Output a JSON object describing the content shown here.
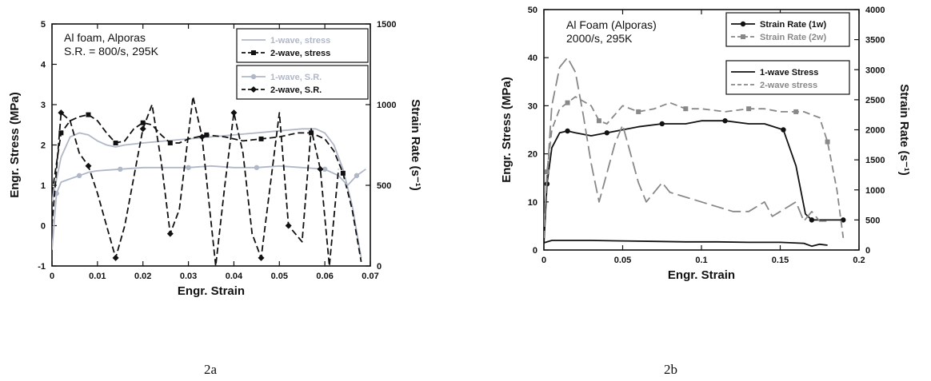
{
  "labels": {
    "left": "2a",
    "right": "2b"
  },
  "chart_data": [
    {
      "type": "line",
      "xlabel": "Engr. Strain",
      "ylabel": "Engr. Stress (MPa)",
      "y2label": "Strain Rate (s⁻¹)",
      "xlim": [
        0,
        0.07
      ],
      "ylim": [
        -1,
        5
      ],
      "y2lim": [
        0,
        1500
      ],
      "xticks": [
        "0",
        "0.01",
        "0.02",
        "0.03",
        "0.04",
        "0.05",
        "0.06",
        "0.07"
      ],
      "yticks": [
        "-1",
        "0",
        "1",
        "2",
        "3",
        "4",
        "5"
      ],
      "y2ticks": [
        "0",
        "500",
        "1000",
        "1500"
      ],
      "annotation": [
        "Al foam, Alporas",
        "S.R. = 800/s, 295K"
      ],
      "legend_position": "top-right",
      "grid": false,
      "series": [
        {
          "name": "1-wave, stress",
          "axis": "left",
          "color": "#b0b8c8",
          "dash": "solid",
          "marker": "none",
          "x": [
            0,
            0.002,
            0.004,
            0.006,
            0.008,
            0.01,
            0.012,
            0.014,
            0.016,
            0.02,
            0.025,
            0.03,
            0.035,
            0.04,
            0.045,
            0.05,
            0.055,
            0.058,
            0.06,
            0.062,
            0.064,
            0.066,
            0.068
          ],
          "y": [
            0.6,
            1.7,
            2.2,
            2.3,
            2.25,
            2.1,
            2.0,
            1.95,
            2.0,
            2.05,
            2.1,
            2.15,
            2.2,
            2.25,
            2.3,
            2.35,
            2.4,
            2.4,
            2.3,
            2.0,
            1.4,
            0.5,
            -0.8
          ]
        },
        {
          "name": "2-wave, stress",
          "axis": "left",
          "color": "#111111",
          "dash": "8,4",
          "marker": "square",
          "x": [
            0,
            0.002,
            0.004,
            0.006,
            0.008,
            0.01,
            0.012,
            0.014,
            0.016,
            0.018,
            0.02,
            0.022,
            0.024,
            0.026,
            0.028,
            0.03,
            0.034,
            0.038,
            0.042,
            0.046,
            0.05,
            0.054,
            0.057,
            0.06,
            0.062,
            0.064,
            0.066,
            0.068
          ],
          "y": [
            0.8,
            2.3,
            2.6,
            2.7,
            2.75,
            2.6,
            2.3,
            2.05,
            2.1,
            2.4,
            2.55,
            2.5,
            2.25,
            2.05,
            2.05,
            2.15,
            2.25,
            2.2,
            2.1,
            2.15,
            2.2,
            2.3,
            2.3,
            2.15,
            1.85,
            1.3,
            0.4,
            -0.9
          ]
        },
        {
          "name": "1-wave, S.R.",
          "axis": "right",
          "color": "#b0b8c8",
          "dash": "solid",
          "marker": "circle",
          "x": [
            0,
            0.001,
            0.002,
            0.004,
            0.006,
            0.008,
            0.01,
            0.015,
            0.02,
            0.025,
            0.03,
            0.035,
            0.04,
            0.045,
            0.05,
            0.055,
            0.06,
            0.063,
            0.065,
            0.067,
            0.069
          ],
          "y": [
            100,
            450,
            520,
            540,
            560,
            580,
            590,
            600,
            610,
            610,
            610,
            620,
            610,
            610,
            620,
            610,
            600,
            560,
            500,
            560,
            600
          ]
        },
        {
          "name": "2-wave, S.R.",
          "axis": "right",
          "color": "#111111",
          "dash": "8,4",
          "marker": "diamond",
          "x": [
            0,
            0.002,
            0.004,
            0.006,
            0.008,
            0.01,
            0.012,
            0.014,
            0.016,
            0.018,
            0.02,
            0.022,
            0.024,
            0.026,
            0.028,
            0.031,
            0.033,
            0.036,
            0.038,
            0.04,
            0.042,
            0.044,
            0.046,
            0.048,
            0.05,
            0.052,
            0.055,
            0.057,
            0.059,
            0.061,
            0.063
          ],
          "y": [
            250,
            950,
            900,
            700,
            620,
            450,
            250,
            50,
            250,
            550,
            850,
            1000,
            650,
            200,
            350,
            1050,
            800,
            0,
            500,
            950,
            700,
            200,
            50,
            500,
            950,
            250,
            150,
            850,
            600,
            0,
            600
          ]
        }
      ]
    },
    {
      "type": "line",
      "xlabel": "Engr. Strain",
      "ylabel": "Engr. Stress (MPa)",
      "y2label": "Strain Rate (s⁻¹)",
      "xlim": [
        0,
        0.2
      ],
      "ylim": [
        0,
        50
      ],
      "y2lim": [
        0,
        4000
      ],
      "xticks": [
        "0",
        "0.05",
        "0.1",
        "0.15",
        "0.2"
      ],
      "yticks": [
        "0",
        "10",
        "20",
        "30",
        "40",
        "50"
      ],
      "y2ticks": [
        "0",
        "500",
        "1000",
        "1500",
        "2000",
        "2500",
        "3000",
        "3500",
        "4000"
      ],
      "annotation": [
        "Al Foam (Alporas)",
        "2000/s, 295K"
      ],
      "legend_position": "top-right",
      "grid": false,
      "series": [
        {
          "name": "Strain Rate (1w)",
          "axis": "right",
          "color": "#111111",
          "dash": "solid",
          "marker": "circle",
          "x": [
            0,
            0.002,
            0.005,
            0.01,
            0.015,
            0.02,
            0.03,
            0.04,
            0.05,
            0.06,
            0.075,
            0.09,
            0.1,
            0.115,
            0.13,
            0.14,
            0.152,
            0.16,
            0.166,
            0.17,
            0.175,
            0.18,
            0.19
          ],
          "y": [
            100,
            1100,
            1700,
            1950,
            1980,
            1950,
            1900,
            1950,
            2000,
            2050,
            2100,
            2100,
            2150,
            2150,
            2100,
            2100,
            2000,
            1400,
            600,
            500,
            500,
            500,
            500
          ]
        },
        {
          "name": "Strain Rate (2w)",
          "axis": "right",
          "color": "#888888",
          "dash": "9,5",
          "marker": "square",
          "x": [
            0,
            0.002,
            0.005,
            0.01,
            0.015,
            0.02,
            0.03,
            0.035,
            0.04,
            0.05,
            0.06,
            0.07,
            0.08,
            0.09,
            0.1,
            0.115,
            0.13,
            0.14,
            0.15,
            0.16,
            0.165,
            0.175,
            0.18,
            0.186,
            0.19
          ],
          "y": [
            200,
            1300,
            2000,
            2350,
            2450,
            2550,
            2400,
            2150,
            2100,
            2400,
            2300,
            2350,
            2450,
            2350,
            2350,
            2300,
            2350,
            2350,
            2300,
            2300,
            2300,
            2200,
            1800,
            1000,
            200
          ]
        },
        {
          "name": "1-wave Stress",
          "axis": "left",
          "color": "#111111",
          "dash": "solid",
          "marker": "none",
          "x": [
            0,
            0.005,
            0.01,
            0.02,
            0.03,
            0.05,
            0.07,
            0.09,
            0.11,
            0.13,
            0.15,
            0.165,
            0.17,
            0.175,
            0.18
          ],
          "y": [
            1.5,
            2.0,
            2.0,
            2.0,
            2.0,
            1.9,
            1.8,
            1.7,
            1.7,
            1.6,
            1.6,
            1.4,
            0.8,
            1.2,
            1.0
          ]
        },
        {
          "name": "2-wave stress",
          "axis": "left",
          "color": "#888888",
          "dash": "16,6",
          "marker": "none",
          "x": [
            0,
            0.005,
            0.01,
            0.015,
            0.02,
            0.025,
            0.03,
            0.035,
            0.04,
            0.045,
            0.05,
            0.055,
            0.06,
            0.065,
            0.07,
            0.075,
            0.08,
            0.09,
            0.1,
            0.11,
            0.12,
            0.13,
            0.14,
            0.145,
            0.15,
            0.16,
            0.165,
            0.17,
            0.175,
            0.18
          ],
          "y": [
            5,
            30,
            38,
            40,
            37,
            28,
            18,
            10,
            16,
            22,
            26,
            20,
            14,
            10,
            12,
            14,
            12,
            11,
            10,
            9,
            8,
            8,
            10,
            7,
            8,
            10,
            6,
            8,
            6,
            6
          ]
        }
      ]
    }
  ]
}
